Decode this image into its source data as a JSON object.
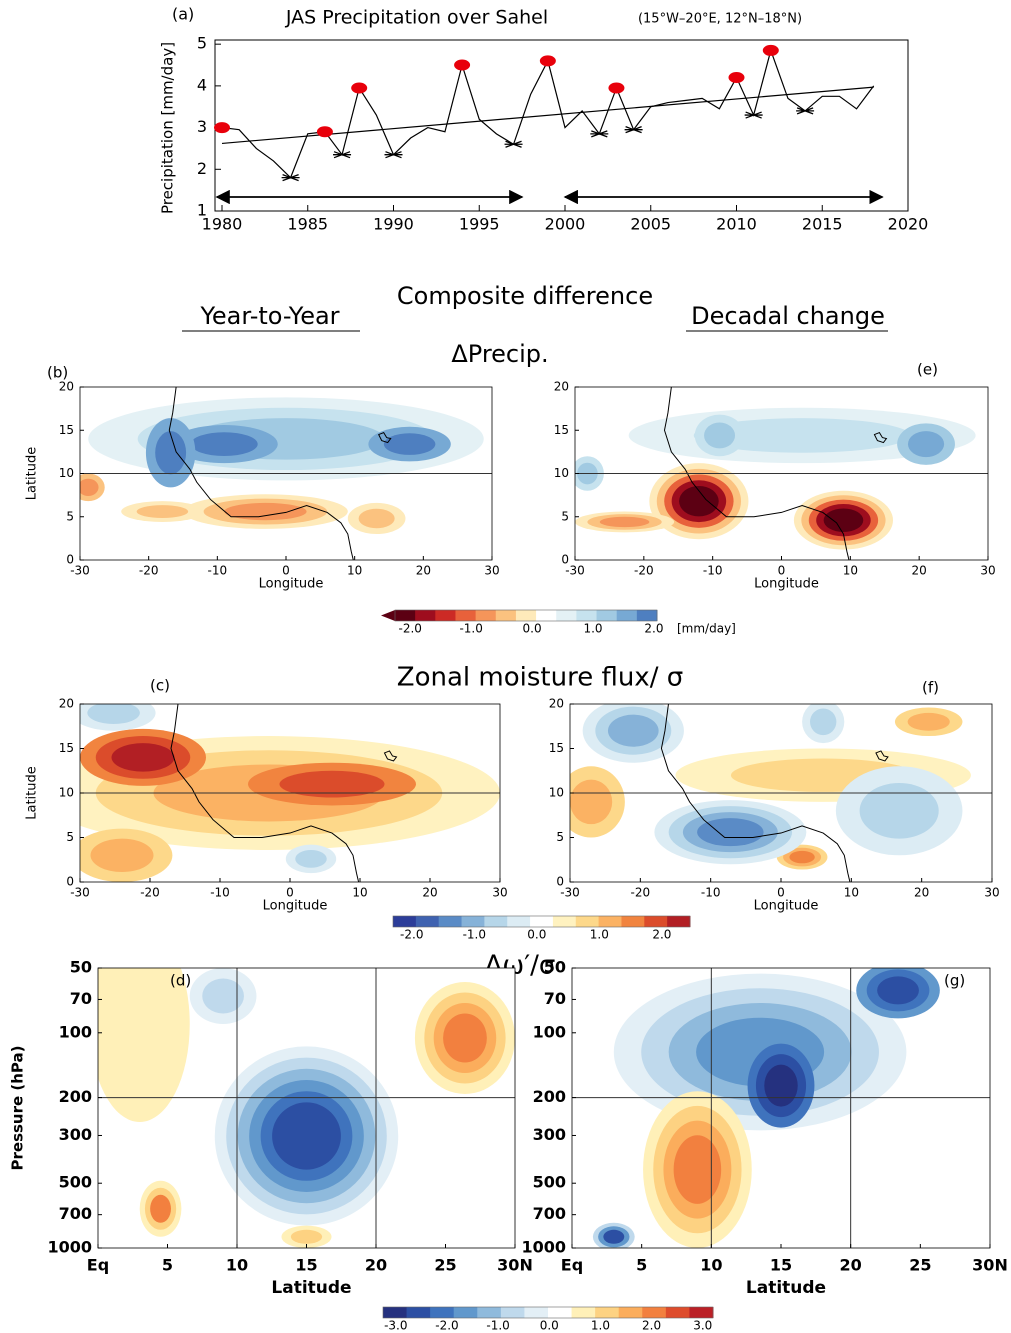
{
  "chart_data": [
    {
      "type": "line",
      "label": "(a)",
      "title": "JAS Precipitation over Sahel",
      "subtitle": "(15°W–20°E,  12°N–18°N)",
      "y_label": "Precipitation  [mm/day]",
      "x": [
        1980,
        1981,
        1982,
        1983,
        1984,
        1985,
        1986,
        1987,
        1988,
        1989,
        1990,
        1991,
        1992,
        1993,
        1994,
        1995,
        1996,
        1997,
        1998,
        1999,
        2000,
        2001,
        2002,
        2003,
        2004,
        2005,
        2006,
        2007,
        2008,
        2009,
        2010,
        2011,
        2012,
        2013,
        2014,
        2015,
        2016,
        2017,
        2018
      ],
      "series": [
        {
          "color": "#000000",
          "values": [
            3.0,
            2.95,
            2.5,
            2.2,
            1.8,
            2.85,
            2.9,
            2.35,
            3.95,
            3.3,
            2.35,
            2.75,
            3.0,
            2.9,
            4.5,
            3.2,
            2.85,
            2.6,
            3.8,
            4.6,
            3.0,
            3.4,
            2.85,
            3.95,
            2.95,
            3.5,
            3.6,
            3.65,
            3.7,
            3.45,
            4.2,
            3.3,
            4.85,
            3.7,
            3.4,
            3.75,
            3.75,
            3.45,
            4.0
          ]
        }
      ],
      "trend": {
        "x": [
          1980,
          2018
        ],
        "values": [
          2.62,
          3.97
        ],
        "color": "#000000"
      },
      "wet_years": [
        1980,
        1986,
        1988,
        1994,
        1999,
        2003,
        2010,
        2012
      ],
      "wet_color": "#e8000b",
      "dry_years": [
        1984,
        1987,
        1990,
        1997,
        2002,
        2004,
        2011,
        2014
      ],
      "periods": [
        [
          1979.7,
          1997.5
        ],
        [
          2000,
          2018.5
        ]
      ],
      "xlim": [
        1979.6,
        2020
      ],
      "xticks": [
        1980,
        1985,
        1990,
        1995,
        2000,
        2005,
        2010,
        2015,
        2020
      ],
      "ylim": [
        1,
        5.1
      ],
      "yticks": [
        1,
        2,
        3,
        4,
        5
      ]
    },
    {
      "type": "contour",
      "label": "(b)",
      "xlim": [
        -30,
        30
      ],
      "ylim": [
        0,
        20
      ],
      "xticks": [
        -30,
        -20,
        -10,
        0,
        10,
        20,
        30
      ],
      "yticks": [
        0,
        5,
        10,
        15,
        20
      ],
      "x_label": "Longitude",
      "y_label": "Latitude",
      "hline": 10
    },
    {
      "type": "contour",
      "label": "(c)",
      "xlim": [
        -30,
        30
      ],
      "ylim": [
        0,
        20
      ],
      "xticks": [
        -30,
        -20,
        -10,
        0,
        10,
        20,
        30
      ],
      "yticks": [
        0,
        5,
        10,
        15,
        20
      ],
      "x_label": "Longitude",
      "y_label": "Latitude",
      "hline": 10
    },
    {
      "type": "contour",
      "label": "(d)",
      "ylog": true,
      "xlim": [
        0,
        30
      ],
      "ylim": [
        1000,
        50
      ],
      "xticks": [
        {
          "value": 0,
          "label": "Eq"
        },
        5,
        10,
        15,
        20,
        25,
        {
          "value": 30,
          "label": "30N"
        }
      ],
      "yticks": [
        50,
        70,
        100,
        200,
        300,
        500,
        700,
        1000
      ],
      "x_label": "Latitude",
      "y_label": "Pressure (hPa)",
      "vlines": [
        10,
        20
      ],
      "hline": 200
    },
    {
      "type": "contour",
      "label": "(e)",
      "xlim": [
        -30,
        30
      ],
      "ylim": [
        0,
        20
      ],
      "xticks": [
        -30,
        -20,
        -10,
        0,
        10,
        20,
        30
      ],
      "yticks": [
        0,
        5,
        10,
        15,
        20
      ],
      "x_label": "Longitude",
      "hline": 10
    },
    {
      "type": "contour",
      "label": "(f)",
      "xlim": [
        -30,
        30
      ],
      "ylim": [
        0,
        20
      ],
      "xticks": [
        -30,
        -20,
        -10,
        0,
        10,
        20,
        30
      ],
      "yticks": [
        0,
        5,
        10,
        15,
        20
      ],
      "x_label": "Longitude",
      "hline": 10
    },
    {
      "type": "contour",
      "label": "(g)",
      "ylog": true,
      "xlim": [
        0,
        30
      ],
      "ylim": [
        1000,
        50
      ],
      "xticks": [
        {
          "value": 0,
          "label": "Eq"
        },
        5,
        10,
        15,
        20,
        25,
        {
          "value": 30,
          "label": "30N"
        }
      ],
      "yticks": [
        50,
        70,
        100,
        200,
        300,
        500,
        700,
        1000
      ],
      "x_label": "Latitude",
      "vlines": [
        10,
        20
      ],
      "hline": 200
    }
  ],
  "titles": {
    "heading": "Composite difference",
    "left": "Year-to-Year",
    "right": "Decadal change",
    "rows": [
      "ΔPrecip.",
      "Zonal moisture flux/ σ",
      "Δω′/σ"
    ]
  },
  "colorbars": [
    {
      "clim": [
        -2.25,
        2.05
      ],
      "ticks": [
        {
          "value": -2,
          "label": "-2.0"
        },
        {
          "value": -1,
          "label": "-1.0"
        },
        {
          "value": 0,
          "label": "0.0"
        },
        {
          "value": 1,
          "label": "1.0"
        },
        {
          "value": 2,
          "label": "2.0"
        }
      ],
      "unit": "[mm/day]",
      "colors": [
        "#5c0013",
        "#9e0d1e",
        "#cc2a25",
        "#e8613b",
        "#f5955a",
        "#fbc27f",
        "#feeaba",
        "#ffffff",
        "#e4f1f5",
        "#c6e2ee",
        "#a1cae2",
        "#77a9d4",
        "#4e7fc0"
      ]
    },
    {
      "clim": [
        -2.3,
        2.45
      ],
      "ticks": [
        {
          "value": -2,
          "label": "-2.0"
        },
        {
          "value": -1,
          "label": "-1.0"
        },
        {
          "value": 0,
          "label": "0.0"
        },
        {
          "value": 1,
          "label": "1.0"
        },
        {
          "value": 2,
          "label": "2.0"
        }
      ],
      "colors": [
        "#2c3d99",
        "#3f62b0",
        "#5a8bc6",
        "#86b2d8",
        "#b6d6e9",
        "#dcecf4",
        "#ffffff",
        "#fff2c0",
        "#fdd88a",
        "#fbb263",
        "#f1843f",
        "#db4c2b",
        "#b21f24"
      ]
    },
    {
      "clim": [
        -3.25,
        3.2
      ],
      "ticks": [
        {
          "value": -3,
          "label": "-3.0"
        },
        {
          "value": -2,
          "label": "-2.0"
        },
        {
          "value": -1,
          "label": "-1.0"
        },
        {
          "value": 0,
          "label": "0.0"
        },
        {
          "value": 1,
          "label": "1.0"
        },
        {
          "value": 2,
          "label": "2.0"
        },
        {
          "value": 3,
          "label": "3.0"
        }
      ],
      "colors": [
        "#25317f",
        "#2c4fa3",
        "#3f73bd",
        "#6198cc",
        "#8fbadc",
        "#bfd9ec",
        "#e3eff6",
        "#ffffff",
        "#fff0b8",
        "#fdd282",
        "#fbad5c",
        "#f2803f",
        "#de4c2c",
        "#bb2026"
      ]
    }
  ]
}
